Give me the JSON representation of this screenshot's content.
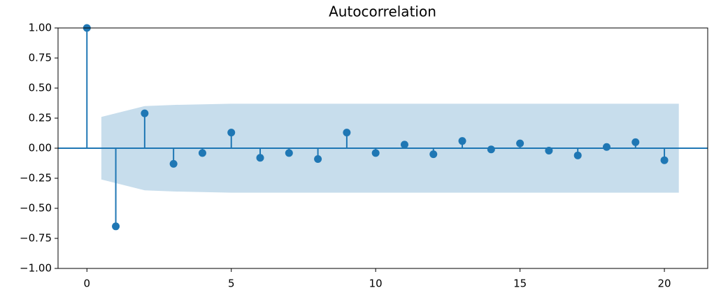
{
  "chart_data": {
    "type": "stem",
    "title": "Autocorrelation",
    "x": [
      0,
      1,
      2,
      3,
      4,
      5,
      6,
      7,
      8,
      9,
      10,
      11,
      12,
      13,
      14,
      15,
      16,
      17,
      18,
      19,
      20
    ],
    "values": [
      1.0,
      -0.65,
      0.29,
      -0.13,
      -0.04,
      0.13,
      -0.08,
      -0.04,
      -0.09,
      0.13,
      -0.04,
      0.03,
      -0.05,
      0.06,
      -0.01,
      0.04,
      -0.02,
      -0.06,
      0.01,
      0.05,
      -0.1
    ],
    "color": "#1f77b4",
    "band": {
      "x": [
        0.5,
        2,
        3,
        4,
        5,
        6,
        7,
        8,
        9,
        10,
        11,
        12,
        13,
        14,
        15,
        16,
        17,
        18,
        19,
        20.5
      ],
      "upper": [
        0.26,
        0.35,
        0.36,
        0.365,
        0.37,
        0.37,
        0.37,
        0.37,
        0.37,
        0.37,
        0.37,
        0.37,
        0.37,
        0.37,
        0.37,
        0.37,
        0.37,
        0.37,
        0.37,
        0.37
      ],
      "lower": [
        -0.26,
        -0.35,
        -0.36,
        -0.365,
        -0.37,
        -0.37,
        -0.37,
        -0.37,
        -0.37,
        -0.37,
        -0.37,
        -0.37,
        -0.37,
        -0.37,
        -0.37,
        -0.37,
        -0.37,
        -0.37,
        -0.37,
        -0.37
      ],
      "color": "#1f77b4"
    },
    "xlim": [
      -1,
      21.5
    ],
    "ylim": [
      -1,
      1
    ],
    "xticks": [
      0,
      5,
      10,
      15,
      20
    ],
    "yticks": [
      {
        "value": -1,
        "label": "−1.00"
      },
      {
        "value": -0.75,
        "label": "−0.75"
      },
      {
        "value": -0.5,
        "label": "−0.50"
      },
      {
        "value": -0.25,
        "label": "−0.25"
      },
      {
        "value": 0,
        "label": "0.00"
      },
      {
        "value": 0.25,
        "label": "0.25"
      },
      {
        "value": 0.5,
        "label": "0.50"
      },
      {
        "value": 0.75,
        "label": "0.75"
      },
      {
        "value": 1,
        "label": "1.00"
      }
    ],
    "grid": false
  }
}
